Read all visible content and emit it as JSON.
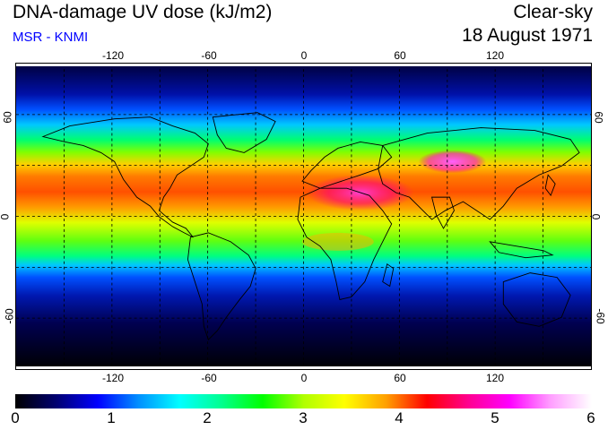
{
  "header": {
    "title": "DNA-damage UV dose (kJ/m2)",
    "credit": "MSR - KNMI",
    "credit_color": "#0000ff",
    "sky_condition": "Clear-sky",
    "date": "18 August 1971"
  },
  "map": {
    "lon_ticks": [
      "-120",
      "-60",
      "0",
      "60",
      "120"
    ],
    "lat_ticks": [
      "60",
      "0",
      "-60"
    ],
    "lon_ticks_values": [
      -120,
      -60,
      0,
      60,
      120
    ],
    "lat_ticks_values": [
      60,
      0,
      -60
    ],
    "gridlines": "dashed every 30 degrees",
    "extent": {
      "lon": [
        -180,
        180
      ],
      "lat": [
        -90,
        90
      ]
    }
  },
  "colorbar": {
    "labels": [
      "0",
      "1",
      "2",
      "3",
      "4",
      "5",
      "6"
    ],
    "min": 0,
    "max": 6,
    "colors": [
      "#000000",
      "#000070",
      "#0000ff",
      "#0090ff",
      "#00ffff",
      "#00ff90",
      "#00ff00",
      "#b0ff00",
      "#ffff00",
      "#ffa000",
      "#ff0000",
      "#ff0090",
      "#ff00ff",
      "#ffa0ff",
      "#ffffff"
    ]
  }
}
